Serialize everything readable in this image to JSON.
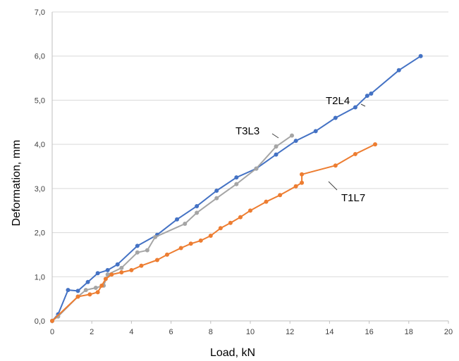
{
  "chart_data": {
    "type": "line",
    "title": "",
    "xlabel": "Load, kN",
    "ylabel": "Deformation, mm",
    "xlim": [
      0,
      20
    ],
    "ylim": [
      0,
      7
    ],
    "grid": "horizontal",
    "legend": "none",
    "x_ticks": [
      "0",
      "2",
      "4",
      "6",
      "8",
      "10",
      "12",
      "14",
      "16",
      "18",
      "20"
    ],
    "y_ticks": [
      "0,0",
      "1,0",
      "2,0",
      "3,0",
      "4,0",
      "5,0",
      "6,0",
      "7,0"
    ],
    "series": [
      {
        "name": "T2L4",
        "color": "#4472C4",
        "points": [
          [
            0,
            0
          ],
          [
            0.3,
            0.15
          ],
          [
            0.8,
            0.7
          ],
          [
            1.3,
            0.68
          ],
          [
            1.8,
            0.88
          ],
          [
            2.3,
            1.08
          ],
          [
            2.8,
            1.15
          ],
          [
            3.3,
            1.28
          ],
          [
            4.3,
            1.7
          ],
          [
            5.3,
            1.95
          ],
          [
            6.3,
            2.3
          ],
          [
            7.3,
            2.6
          ],
          [
            8.3,
            2.95
          ],
          [
            9.3,
            3.25
          ],
          [
            10.3,
            3.45
          ],
          [
            11.3,
            3.77
          ],
          [
            12.3,
            4.08
          ],
          [
            13.3,
            4.3
          ],
          [
            14.3,
            4.6
          ],
          [
            15.3,
            4.84
          ],
          [
            15.9,
            5.1
          ],
          [
            16.1,
            5.15
          ],
          [
            17.5,
            5.68
          ],
          [
            18.6,
            6.0
          ]
        ]
      },
      {
        "name": "T3L3",
        "color": "#A5A5A5",
        "points": [
          [
            0,
            0
          ],
          [
            0.3,
            0.1
          ],
          [
            1.3,
            0.55
          ],
          [
            1.7,
            0.7
          ],
          [
            2.2,
            0.75
          ],
          [
            2.6,
            0.8
          ],
          [
            2.8,
            1.05
          ],
          [
            3.5,
            1.2
          ],
          [
            4.3,
            1.55
          ],
          [
            4.8,
            1.6
          ],
          [
            5.2,
            1.9
          ],
          [
            6.7,
            2.2
          ],
          [
            7.3,
            2.45
          ],
          [
            8.3,
            2.78
          ],
          [
            9.3,
            3.1
          ],
          [
            10.3,
            3.45
          ],
          [
            11.3,
            3.95
          ],
          [
            12.1,
            4.2
          ]
        ]
      },
      {
        "name": "T1L7",
        "color": "#ED7D31",
        "points": [
          [
            0,
            0
          ],
          [
            1.3,
            0.55
          ],
          [
            1.9,
            0.6
          ],
          [
            2.3,
            0.65
          ],
          [
            2.5,
            0.8
          ],
          [
            2.7,
            0.95
          ],
          [
            3.0,
            1.05
          ],
          [
            3.5,
            1.1
          ],
          [
            4.0,
            1.15
          ],
          [
            4.5,
            1.25
          ],
          [
            5.3,
            1.38
          ],
          [
            5.8,
            1.5
          ],
          [
            6.5,
            1.65
          ],
          [
            7.0,
            1.75
          ],
          [
            7.5,
            1.82
          ],
          [
            8.0,
            1.93
          ],
          [
            8.5,
            2.1
          ],
          [
            9.0,
            2.22
          ],
          [
            9.5,
            2.35
          ],
          [
            10.0,
            2.5
          ],
          [
            10.8,
            2.7
          ],
          [
            11.5,
            2.85
          ],
          [
            12.3,
            3.05
          ],
          [
            12.6,
            3.13
          ],
          [
            12.6,
            3.32
          ],
          [
            14.3,
            3.52
          ],
          [
            15.3,
            3.78
          ],
          [
            16.3,
            4.0
          ]
        ]
      }
    ],
    "annotations": [
      {
        "text": "T2L4",
        "series": "T2L4"
      },
      {
        "text": "T3L3",
        "series": "T3L3"
      },
      {
        "text": "T1L7",
        "series": "T1L7"
      }
    ]
  }
}
